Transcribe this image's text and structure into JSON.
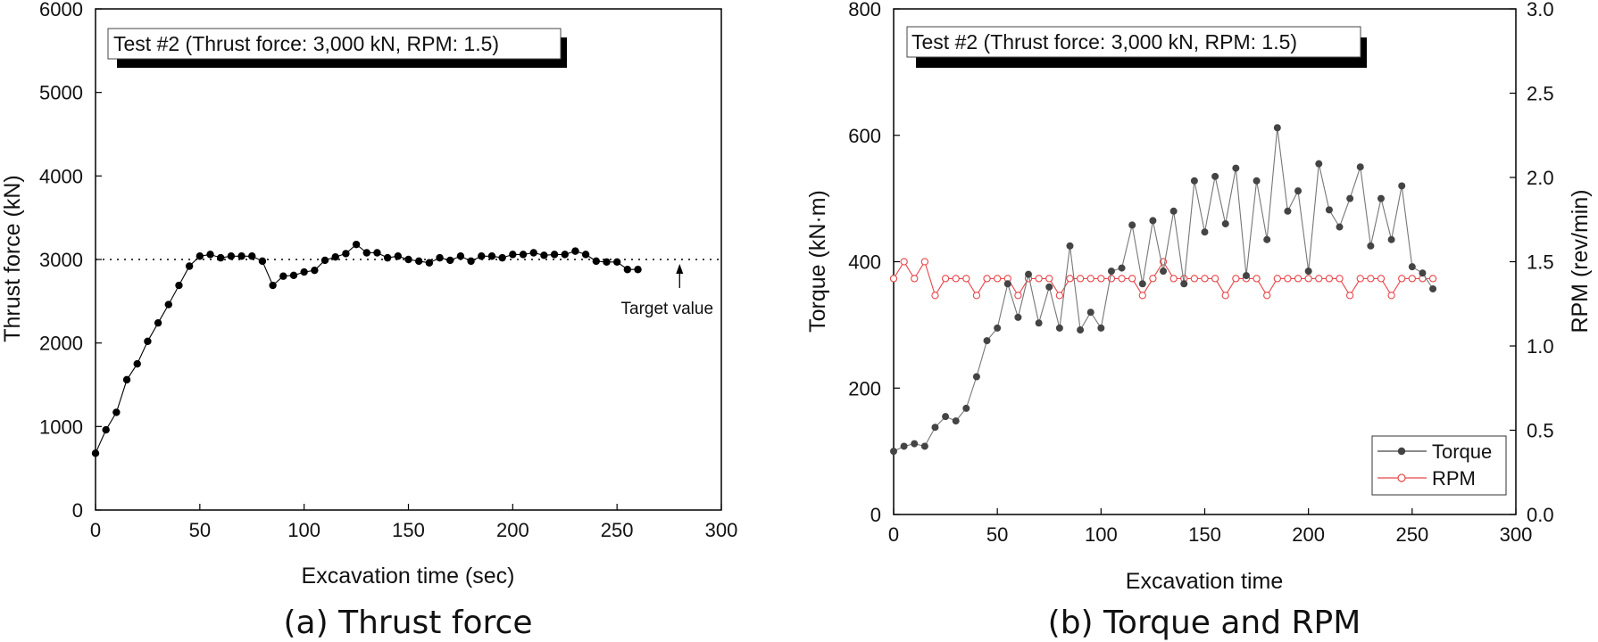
{
  "panels": [
    {
      "caption": "(a) Thrust force",
      "inset_label": "Test #2 (Thrust force: 3,000 kN, RPM: 1.5)",
      "annotation": "Target value"
    },
    {
      "caption": "(b) Torque and RPM",
      "inset_label": "Test #2 (Thrust force: 3,000 kN, RPM: 1.5)",
      "legend_position": "bottom-right"
    }
  ],
  "chart_data": [
    {
      "type": "line",
      "xlabel": "Excavation time (sec)",
      "ylabel": "Thrust force (kN)",
      "xlim": [
        0,
        300
      ],
      "ylim": [
        0,
        6000
      ],
      "xticks": [
        0,
        50,
        100,
        150,
        200,
        250,
        300
      ],
      "yticks": [
        0,
        1000,
        2000,
        3000,
        4000,
        5000,
        6000
      ],
      "grid": false,
      "target_line": {
        "y": 3000,
        "style": "dotted",
        "label": "Target value",
        "arrow_x": 280
      },
      "series": [
        {
          "marker": "filled-circle",
          "color": "#000000",
          "x": [
            0,
            5,
            10,
            15,
            20,
            25,
            30,
            35,
            40,
            45,
            50,
            55,
            60,
            65,
            70,
            75,
            80,
            85,
            90,
            95,
            100,
            105,
            110,
            115,
            120,
            125,
            130,
            135,
            140,
            145,
            150,
            155,
            160,
            165,
            170,
            175,
            180,
            185,
            190,
            195,
            200,
            205,
            210,
            215,
            220,
            225,
            230,
            235,
            240,
            245,
            250,
            255,
            260
          ],
          "y": [
            680,
            960,
            1170,
            1560,
            1750,
            2020,
            2240,
            2460,
            2690,
            2920,
            3040,
            3060,
            3020,
            3040,
            3040,
            3040,
            2980,
            2690,
            2800,
            2810,
            2850,
            2870,
            2990,
            3030,
            3070,
            3180,
            3080,
            3080,
            3020,
            3040,
            3000,
            2980,
            2960,
            3020,
            2990,
            3040,
            2980,
            3040,
            3040,
            3020,
            3060,
            3060,
            3080,
            3050,
            3060,
            3060,
            3100,
            3060,
            2980,
            2970,
            2970,
            2880,
            2880
          ]
        }
      ]
    },
    {
      "type": "line",
      "xlabel": "Excavation time",
      "ylabel": "Torque (kN·m)",
      "ylabel_right": "RPM (rev/min)",
      "xlim": [
        0,
        300
      ],
      "ylim": [
        0,
        800
      ],
      "ylim_right": [
        0,
        3
      ],
      "xticks": [
        0,
        50,
        100,
        150,
        200,
        250,
        300
      ],
      "yticks": [
        0,
        200,
        400,
        600,
        800
      ],
      "yticks_right": [
        "0.0",
        "0.5",
        "1.0",
        "1.5",
        "2.0",
        "2.5",
        "3.0"
      ],
      "grid": false,
      "legend": {
        "position": "bottom-right",
        "entries": [
          "Torque",
          "RPM"
        ]
      },
      "series": [
        {
          "name": "Torque",
          "axis": "left",
          "color": "#444444",
          "marker": "filled-circle",
          "x": [
            0,
            5,
            10,
            15,
            20,
            25,
            30,
            35,
            40,
            45,
            50,
            55,
            60,
            65,
            70,
            75,
            80,
            85,
            90,
            95,
            100,
            105,
            110,
            115,
            120,
            125,
            130,
            135,
            140,
            145,
            150,
            155,
            160,
            165,
            170,
            175,
            180,
            185,
            190,
            195,
            200,
            205,
            210,
            215,
            220,
            225,
            230,
            235,
            240,
            245,
            250,
            255,
            260
          ],
          "y": [
            100,
            108,
            112,
            108,
            138,
            155,
            148,
            168,
            218,
            275,
            295,
            365,
            312,
            380,
            303,
            360,
            295,
            425,
            292,
            320,
            295,
            385,
            390,
            458,
            365,
            465,
            385,
            480,
            365,
            528,
            447,
            535,
            460,
            548,
            378,
            528,
            435,
            612,
            480,
            512,
            385,
            555,
            482,
            455,
            500,
            550,
            425,
            500,
            435,
            520,
            392,
            382,
            357
          ]
        },
        {
          "name": "RPM",
          "axis": "right",
          "color": "#e8474b",
          "marker": "open-circle",
          "x": [
            0,
            5,
            10,
            15,
            20,
            25,
            30,
            35,
            40,
            45,
            50,
            55,
            60,
            65,
            70,
            75,
            80,
            85,
            90,
            95,
            100,
            105,
            110,
            115,
            120,
            125,
            130,
            135,
            140,
            145,
            150,
            155,
            160,
            165,
            170,
            175,
            180,
            185,
            190,
            195,
            200,
            205,
            210,
            215,
            220,
            225,
            230,
            235,
            240,
            245,
            250,
            255,
            260
          ],
          "y": [
            1.4,
            1.5,
            1.4,
            1.5,
            1.3,
            1.4,
            1.4,
            1.4,
            1.3,
            1.4,
            1.4,
            1.4,
            1.3,
            1.4,
            1.4,
            1.4,
            1.3,
            1.4,
            1.4,
            1.4,
            1.4,
            1.4,
            1.4,
            1.4,
            1.3,
            1.4,
            1.5,
            1.4,
            1.4,
            1.4,
            1.4,
            1.4,
            1.3,
            1.4,
            1.4,
            1.4,
            1.3,
            1.4,
            1.4,
            1.4,
            1.4,
            1.4,
            1.4,
            1.4,
            1.3,
            1.4,
            1.4,
            1.4,
            1.3,
            1.4,
            1.4,
            1.4,
            1.4
          ]
        }
      ]
    }
  ]
}
